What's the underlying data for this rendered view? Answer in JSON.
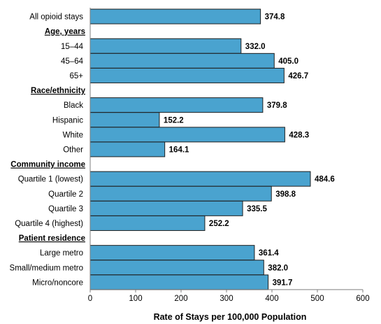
{
  "chart_data": {
    "type": "bar",
    "orientation": "horizontal",
    "xlabel": "Rate of Stays per 100,000 Population",
    "xlim": [
      0,
      600
    ],
    "xticks": [
      0,
      100,
      200,
      300,
      400,
      500,
      600
    ],
    "grid": false,
    "bar_color": "#4aa3cf",
    "rows": [
      {
        "kind": "bar",
        "label": "All opioid stays",
        "value": 374.8,
        "value_label": "374.8"
      },
      {
        "kind": "group",
        "label": "Age, years"
      },
      {
        "kind": "bar",
        "label": "15–44",
        "value": 332.0,
        "value_label": "332.0"
      },
      {
        "kind": "bar",
        "label": "45–64",
        "value": 405.0,
        "value_label": "405.0"
      },
      {
        "kind": "bar",
        "label": "65+",
        "value": 426.7,
        "value_label": "426.7"
      },
      {
        "kind": "group",
        "label": "Race/ethnicity"
      },
      {
        "kind": "bar",
        "label": "Black",
        "value": 379.8,
        "value_label": "379.8"
      },
      {
        "kind": "bar",
        "label": "Hispanic",
        "value": 152.2,
        "value_label": "152.2"
      },
      {
        "kind": "bar",
        "label": "White",
        "value": 428.3,
        "value_label": "428.3"
      },
      {
        "kind": "bar",
        "label": "Other",
        "value": 164.1,
        "value_label": "164.1"
      },
      {
        "kind": "group",
        "label": "Community income"
      },
      {
        "kind": "bar",
        "label": "Quartile 1 (lowest)",
        "value": 484.6,
        "value_label": "484.6"
      },
      {
        "kind": "bar",
        "label": "Quartile 2",
        "value": 398.8,
        "value_label": "398.8"
      },
      {
        "kind": "bar",
        "label": "Quartile 3",
        "value": 335.5,
        "value_label": "335.5"
      },
      {
        "kind": "bar",
        "label": "Quartile 4 (highest)",
        "value": 252.2,
        "value_label": "252.2"
      },
      {
        "kind": "group",
        "label": "Patient residence"
      },
      {
        "kind": "bar",
        "label": "Large metro",
        "value": 361.4,
        "value_label": "361.4"
      },
      {
        "kind": "bar",
        "label": "Small/medium metro",
        "value": 382.0,
        "value_label": "382.0"
      },
      {
        "kind": "bar",
        "label": "Micro/noncore",
        "value": 391.7,
        "value_label": "391.7"
      }
    ]
  }
}
